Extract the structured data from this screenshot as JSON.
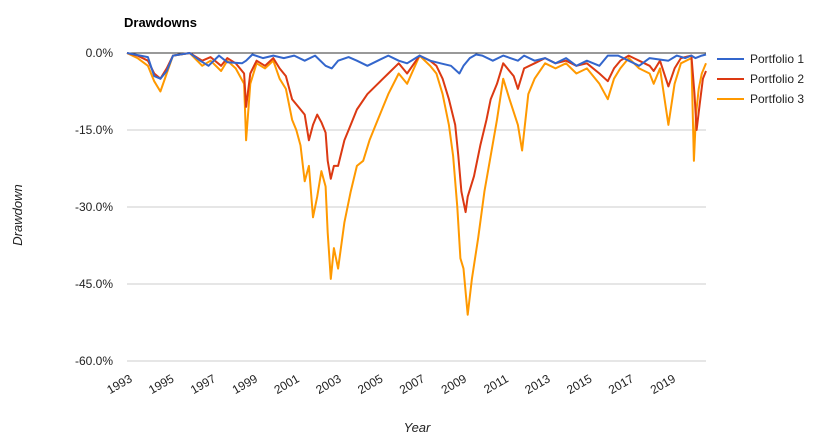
{
  "chart_data": {
    "type": "line",
    "title": "Drawdowns",
    "xlabel": "Year",
    "ylabel": "Drawdown",
    "x_range": [
      1993.0,
      2020.7
    ],
    "ylim": [
      -60,
      0
    ],
    "y_ticks": [
      0,
      -15,
      -30,
      -45,
      -60
    ],
    "y_tick_labels": [
      "0.0%",
      "-15.0%",
      "-30.0%",
      "-45.0%",
      "-60.0%"
    ],
    "x_ticks": [
      1993,
      1995,
      1997,
      1999,
      2001,
      2003,
      2005,
      2007,
      2009,
      2011,
      2013,
      2015,
      2017,
      2019
    ],
    "x_tick_labels": [
      "1993",
      "1995",
      "1997",
      "1999",
      "2001",
      "2003",
      "2005",
      "2007",
      "2009",
      "2011",
      "2013",
      "2015",
      "2017",
      "2019"
    ],
    "grid": true,
    "legend_position": "right",
    "series": [
      {
        "name": "Portfolio 1",
        "color": "#3366cc",
        "x": [
          1993.0,
          1994.0,
          1994.3,
          1994.6,
          1994.9,
          1995.2,
          1996.0,
          1996.5,
          1996.9,
          1997.4,
          1997.8,
          1998.5,
          1998.7,
          1999.0,
          1999.5,
          2000.0,
          2000.5,
          2001.0,
          2001.5,
          2002.0,
          2002.5,
          2002.8,
          2003.1,
          2003.6,
          2004.0,
          2004.5,
          2005.0,
          2005.5,
          2006.0,
          2006.4,
          2007.0,
          2007.5,
          2008.0,
          2008.5,
          2008.9,
          2009.1,
          2009.4,
          2009.7,
          2010.0,
          2010.5,
          2011.0,
          2011.7,
          2012.0,
          2012.5,
          2013.0,
          2013.5,
          2014.0,
          2014.5,
          2015.0,
          2015.6,
          2016.0,
          2016.5,
          2017.0,
          2017.5,
          2018.0,
          2018.9,
          2019.3,
          2019.7,
          2020.0,
          2020.2,
          2020.5,
          2020.7
        ],
        "values": [
          0.0,
          -0.8,
          -4.5,
          -5.0,
          -3.5,
          -0.5,
          0.0,
          -1.5,
          -2.5,
          -0.5,
          -1.8,
          -2.0,
          -1.5,
          -0.3,
          -1.0,
          -0.5,
          -1.0,
          -0.5,
          -1.5,
          -0.5,
          -2.5,
          -3.0,
          -1.5,
          -0.8,
          -1.5,
          -2.5,
          -1.5,
          -0.5,
          -1.5,
          -2.0,
          -0.5,
          -1.5,
          -2.0,
          -2.5,
          -4.0,
          -2.5,
          -1.0,
          -0.3,
          -0.5,
          -1.5,
          -0.5,
          -1.5,
          -0.5,
          -1.5,
          -1.0,
          -2.0,
          -1.0,
          -2.5,
          -1.5,
          -2.5,
          -0.5,
          -0.5,
          -1.5,
          -2.5,
          -1.0,
          -1.5,
          -0.5,
          -1.0,
          -0.5,
          -1.0,
          -0.5,
          -0.3
        ]
      },
      {
        "name": "Portfolio 2",
        "color": "#dc3912",
        "x": [
          1993.0,
          1993.5,
          1994.0,
          1994.3,
          1994.6,
          1994.9,
          1995.2,
          1996.0,
          1996.6,
          1997.0,
          1997.5,
          1997.8,
          1998.2,
          1998.6,
          1998.7,
          1998.9,
          1999.2,
          1999.6,
          2000.0,
          2000.3,
          2000.6,
          2000.9,
          2001.2,
          2001.5,
          2001.7,
          2001.9,
          2002.1,
          2002.3,
          2002.5,
          2002.6,
          2002.75,
          2002.9,
          2003.1,
          2003.4,
          2003.7,
          2004.0,
          2004.5,
          2005.0,
          2005.5,
          2006.0,
          2006.4,
          2007.0,
          2007.5,
          2007.8,
          2008.1,
          2008.4,
          2008.7,
          2008.85,
          2009.0,
          2009.2,
          2009.3,
          2009.6,
          2009.9,
          2010.2,
          2010.4,
          2010.7,
          2011.0,
          2011.5,
          2011.7,
          2012.0,
          2012.5,
          2013.0,
          2013.5,
          2014.0,
          2014.5,
          2015.0,
          2015.6,
          2016.0,
          2016.3,
          2016.6,
          2017.0,
          2017.5,
          2018.0,
          2018.2,
          2018.5,
          2018.9,
          2019.2,
          2019.5,
          2020.0,
          2020.15,
          2020.25,
          2020.4,
          2020.55,
          2020.7
        ],
        "values": [
          0.0,
          -0.5,
          -1.5,
          -4.0,
          -5.0,
          -3.0,
          -0.5,
          0.0,
          -1.5,
          -0.8,
          -2.5,
          -1.0,
          -2.0,
          -4.0,
          -10.5,
          -4.0,
          -1.5,
          -2.5,
          -1.0,
          -3.0,
          -4.5,
          -9.0,
          -10.5,
          -12.0,
          -17.0,
          -14.0,
          -12.0,
          -13.5,
          -15.5,
          -21.0,
          -24.5,
          -22.0,
          -22.0,
          -17.0,
          -14.0,
          -11.0,
          -8.0,
          -6.0,
          -4.0,
          -2.0,
          -4.0,
          -0.5,
          -1.5,
          -2.5,
          -5.0,
          -9.0,
          -14.0,
          -20.0,
          -27.0,
          -31.0,
          -28.0,
          -24.0,
          -18.0,
          -13.0,
          -9.0,
          -6.0,
          -2.0,
          -4.5,
          -7.0,
          -3.0,
          -2.0,
          -1.0,
          -2.0,
          -1.5,
          -2.5,
          -2.0,
          -4.0,
          -5.5,
          -3.0,
          -1.5,
          -0.5,
          -1.5,
          -2.5,
          -3.5,
          -1.5,
          -6.5,
          -3.0,
          -1.0,
          -0.5,
          -8.0,
          -15.0,
          -10.0,
          -5.0,
          -3.5
        ]
      },
      {
        "name": "Portfolio 3",
        "color": "#ff9900",
        "x": [
          1993.0,
          1993.5,
          1994.0,
          1994.3,
          1994.6,
          1994.9,
          1995.2,
          1996.0,
          1996.6,
          1997.0,
          1997.5,
          1997.8,
          1998.2,
          1998.6,
          1998.7,
          1998.9,
          1999.2,
          1999.6,
          2000.0,
          2000.3,
          2000.6,
          2000.9,
          2001.1,
          2001.3,
          2001.5,
          2001.7,
          2001.9,
          2002.1,
          2002.3,
          2002.5,
          2002.6,
          2002.75,
          2002.9,
          2003.1,
          2003.4,
          2003.7,
          2004.0,
          2004.3,
          2004.6,
          2005.0,
          2005.5,
          2006.0,
          2006.4,
          2007.0,
          2007.5,
          2007.8,
          2008.1,
          2008.4,
          2008.6,
          2008.8,
          2008.95,
          2009.1,
          2009.3,
          2009.5,
          2009.8,
          2010.1,
          2010.4,
          2010.7,
          2011.0,
          2011.3,
          2011.7,
          2011.9,
          2012.2,
          2012.5,
          2013.0,
          2013.5,
          2014.0,
          2014.5,
          2015.0,
          2015.6,
          2016.0,
          2016.3,
          2016.6,
          2017.0,
          2017.5,
          2018.0,
          2018.2,
          2018.5,
          2018.9,
          2019.2,
          2019.5,
          2020.0,
          2020.12,
          2020.22,
          2020.35,
          2020.5,
          2020.7
        ],
        "values": [
          0.0,
          -1.0,
          -2.5,
          -5.5,
          -7.5,
          -4.0,
          -0.5,
          0.0,
          -2.5,
          -1.5,
          -3.5,
          -1.5,
          -3.0,
          -6.0,
          -17.0,
          -6.0,
          -2.0,
          -3.0,
          -1.5,
          -5.0,
          -7.0,
          -13.0,
          -15.0,
          -18.0,
          -25.0,
          -22.0,
          -32.0,
          -28.0,
          -23.0,
          -26.0,
          -35.0,
          -44.0,
          -38.0,
          -42.0,
          -33.0,
          -27.0,
          -22.0,
          -21.0,
          -17.0,
          -13.0,
          -8.0,
          -4.0,
          -6.0,
          -0.5,
          -2.5,
          -4.0,
          -8.0,
          -14.0,
          -20.0,
          -30.0,
          -40.0,
          -42.0,
          -51.0,
          -44.0,
          -36.0,
          -27.0,
          -20.0,
          -13.0,
          -5.0,
          -9.0,
          -14.0,
          -19.0,
          -8.0,
          -5.0,
          -2.0,
          -3.0,
          -2.0,
          -4.0,
          -3.0,
          -6.0,
          -9.0,
          -5.0,
          -3.0,
          -1.0,
          -3.0,
          -4.0,
          -6.0,
          -3.0,
          -14.0,
          -6.0,
          -2.0,
          -1.0,
          -21.0,
          -12.0,
          -7.0,
          -4.0,
          -2.0
        ]
      }
    ]
  }
}
